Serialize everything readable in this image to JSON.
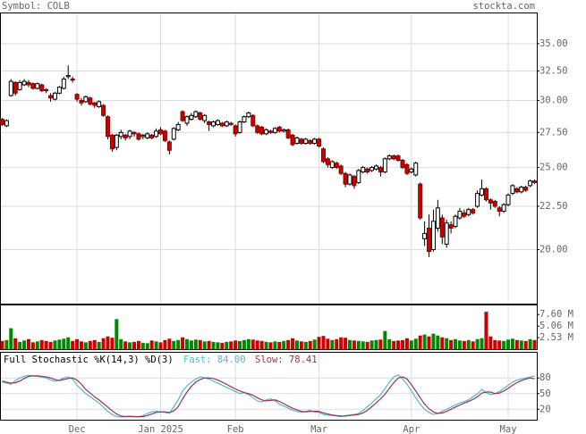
{
  "header": {
    "symbol": "Symbol: COLB",
    "site": "stockta.com"
  },
  "chart_data": [
    {
      "type": "candlestick",
      "categories": [
        null,
        null,
        null,
        null,
        null,
        null,
        null,
        null,
        null,
        null,
        null,
        null,
        null,
        null,
        null,
        null,
        null,
        "Dec",
        null,
        null,
        null,
        null,
        null,
        null,
        null,
        null,
        null,
        null,
        null,
        null,
        null,
        null,
        null,
        null,
        null,
        null,
        "Jan 2025",
        null,
        null,
        null,
        null,
        null,
        null,
        null,
        null,
        null,
        null,
        null,
        null,
        null,
        null,
        null,
        null,
        "Feb",
        null,
        null,
        null,
        null,
        null,
        null,
        null,
        null,
        null,
        null,
        null,
        null,
        null,
        null,
        null,
        null,
        null,
        null,
        "Mar",
        null,
        null,
        null,
        null,
        null,
        null,
        null,
        null,
        null,
        null,
        null,
        null,
        null,
        null,
        null,
        null,
        null,
        null,
        null,
        null,
        "Apr",
        null,
        null,
        null,
        null,
        null,
        null,
        null,
        null,
        null,
        null,
        null,
        null,
        null,
        null,
        null,
        null,
        null,
        null,
        null,
        null,
        null,
        "May",
        null,
        null,
        null,
        null,
        null,
        null
      ],
      "open": [
        28.5,
        28.0,
        30.4,
        31.5,
        30.9,
        31.3,
        31.5,
        31.4,
        31.0,
        31.3,
        30.9,
        30.4,
        30.1,
        30.6,
        31.0,
        32.0,
        31.8,
        30.5,
        30.0,
        29.9,
        30.2,
        29.8,
        29.5,
        29.6,
        28.7,
        27.3,
        26.4,
        27.2,
        27.3,
        27.2,
        27.5,
        27.4,
        27.2,
        27.1,
        27.3,
        27.2,
        27.7,
        27.6,
        26.8,
        27.0,
        27.7,
        29.1,
        28.2,
        28.5,
        28.7,
        29.0,
        28.4,
        28.3,
        28.0,
        28.1,
        28.2,
        28.0,
        28.2,
        28.0,
        27.5,
        28.3,
        28.7,
        28.8,
        28.0,
        27.9,
        27.4,
        27.6,
        27.5,
        27.9,
        27.6,
        27.7,
        27.3,
        26.7,
        27.0,
        26.7,
        26.9,
        26.7,
        27.0,
        26.3,
        25.6,
        25.0,
        25.3,
        25.1,
        24.6,
        23.9,
        24.4,
        24.0,
        24.7,
        24.9,
        24.8,
        24.9,
        25.0,
        24.7,
        25.6,
        25.8,
        25.8,
        25.5,
        25.2,
        24.7,
        24.5,
        23.9,
        20.6,
        21.2,
        20.0,
        21.2,
        21.8,
        20.3,
        21.4,
        21.3,
        21.8,
        22.1,
        22.0,
        22.3,
        22.5,
        23.2,
        23.6,
        22.9,
        22.8,
        22.4,
        22.2,
        22.6,
        23.3,
        23.6,
        23.4,
        23.7,
        23.8,
        24.1
      ],
      "high": [
        28.6,
        28.5,
        31.8,
        31.6,
        31.7,
        31.8,
        31.7,
        31.5,
        31.5,
        31.4,
        31.0,
        30.6,
        30.7,
        31.2,
        32.0,
        33.0,
        32.0,
        30.6,
        30.2,
        30.4,
        30.3,
        29.9,
        30.0,
        29.7,
        28.8,
        27.4,
        27.4,
        27.7,
        27.4,
        27.7,
        27.6,
        27.5,
        27.4,
        27.5,
        27.4,
        27.8,
        27.9,
        27.7,
        26.9,
        27.9,
        28.3,
        29.2,
        28.8,
        29.0,
        29.2,
        29.1,
        28.9,
        28.4,
        28.4,
        28.5,
        28.3,
        28.4,
        28.3,
        28.1,
        28.4,
        28.8,
        29.1,
        28.9,
        28.1,
        28.0,
        27.8,
        27.7,
        27.9,
        28.0,
        27.8,
        27.8,
        27.4,
        27.2,
        27.1,
        27.1,
        27.0,
        27.1,
        27.1,
        26.4,
        25.7,
        25.5,
        25.4,
        25.2,
        24.7,
        24.6,
        24.5,
        24.9,
        25.1,
        25.0,
        25.1,
        25.2,
        25.1,
        25.7,
        25.9,
        25.9,
        25.9,
        25.6,
        25.3,
        25.0,
        25.4,
        24.0,
        21.6,
        22.0,
        22.3,
        22.9,
        22.0,
        21.7,
        21.6,
        22.0,
        22.4,
        22.3,
        22.4,
        22.4,
        23.5,
        24.2,
        23.7,
        23.0,
        22.9,
        22.5,
        22.7,
        23.3,
        23.9,
        23.7,
        23.8,
        23.8,
        24.2,
        24.2
      ],
      "low": [
        28.0,
        27.9,
        30.3,
        30.4,
        30.8,
        31.2,
        31.1,
        30.9,
        30.9,
        30.7,
        30.6,
        29.9,
        30.0,
        30.5,
        30.9,
        31.8,
        31.5,
        29.9,
        29.6,
        29.8,
        29.6,
        29.4,
        29.4,
        28.7,
        27.0,
        26.1,
        26.2,
        27.0,
        26.9,
        27.0,
        27.2,
        26.9,
        27.0,
        27.0,
        27.0,
        27.1,
        27.3,
        26.8,
        25.9,
        26.9,
        27.6,
        28.3,
        28.0,
        28.4,
        28.6,
        28.4,
        28.2,
        27.6,
        27.9,
        28.0,
        27.9,
        27.9,
        28.0,
        27.2,
        27.4,
        28.2,
        28.6,
        27.9,
        27.4,
        27.3,
        27.3,
        27.4,
        27.4,
        27.5,
        27.5,
        27.0,
        26.5,
        26.6,
        26.6,
        26.6,
        26.6,
        26.6,
        26.4,
        25.3,
        25.0,
        24.9,
        24.9,
        24.5,
        23.7,
        23.8,
        23.6,
        23.9,
        24.6,
        24.6,
        24.7,
        24.8,
        24.4,
        24.6,
        25.5,
        25.5,
        25.4,
        24.9,
        24.5,
        24.6,
        24.4,
        21.7,
        20.2,
        19.6,
        19.9,
        21.0,
        20.3,
        20.1,
        20.9,
        21.2,
        21.7,
        21.8,
        21.9,
        22.0,
        22.4,
        23.1,
        22.8,
        22.3,
        22.4,
        21.9,
        22.1,
        22.5,
        23.2,
        23.3,
        23.3,
        23.4,
        23.7,
        23.9
      ],
      "close": [
        28.1,
        28.4,
        31.6,
        30.6,
        31.5,
        31.6,
        31.3,
        31.0,
        31.4,
        30.8,
        30.8,
        30.2,
        30.6,
        31.1,
        31.8,
        32.1,
        31.7,
        30.1,
        29.8,
        30.3,
        29.7,
        29.6,
        29.9,
        28.8,
        27.2,
        26.3,
        27.3,
        27.5,
        27.1,
        27.6,
        27.4,
        27.0,
        27.3,
        27.4,
        27.1,
        27.6,
        27.4,
        26.9,
        26.2,
        27.8,
        28.1,
        28.4,
        28.7,
        28.8,
        29.1,
        28.5,
        28.8,
        28.1,
        28.3,
        28.4,
        28.0,
        28.3,
        28.1,
        27.4,
        28.3,
        28.7,
        29.0,
        28.0,
        27.5,
        27.4,
        27.7,
        27.5,
        27.8,
        27.6,
        27.7,
        27.1,
        26.6,
        27.1,
        26.7,
        27.0,
        26.7,
        27.0,
        26.5,
        25.4,
        25.2,
        25.4,
        25.0,
        24.6,
        23.9,
        24.5,
        23.8,
        24.8,
        25.0,
        24.7,
        25.0,
        25.1,
        24.7,
        25.6,
        25.8,
        25.6,
        25.5,
        25.0,
        24.6,
        24.9,
        25.3,
        21.8,
        20.9,
        19.9,
        21.6,
        22.4,
        20.7,
        21.5,
        21.2,
        21.9,
        22.2,
        21.9,
        22.3,
        22.1,
        23.3,
        23.6,
        22.9,
        22.7,
        22.5,
        22.2,
        22.6,
        23.2,
        23.8,
        23.4,
        23.7,
        23.5,
        24.1,
        24.0
      ],
      "up_color": "#ffffff",
      "down_color": "#cc0000",
      "ylim": [
        17.27,
        38.1
      ],
      "log_scale": true,
      "grid": true,
      "yticks": [
        {
          "value": 20,
          "label": "20.00"
        },
        {
          "value": 22.5,
          "label": "22.50"
        },
        {
          "value": 25,
          "label": "25.00"
        },
        {
          "value": 27.5,
          "label": "27.50"
        },
        {
          "value": 30,
          "label": "30.00"
        },
        {
          "value": 32.5,
          "label": "32.50"
        },
        {
          "value": 35,
          "label": "35.00"
        }
      ]
    },
    {
      "type": "bar",
      "values": [
        1.8,
        2.0,
        4.6,
        2.4,
        1.6,
        1.9,
        2.2,
        1.5,
        1.7,
        2.0,
        1.8,
        1.6,
        1.9,
        2.1,
        2.3,
        2.6,
        1.8,
        2.2,
        1.7,
        1.5,
        1.8,
        2.0,
        1.6,
        2.4,
        2.8,
        2.5,
        6.6,
        2.2,
        1.7,
        1.5,
        1.6,
        1.8,
        1.4,
        1.3,
        1.9,
        1.7,
        1.5,
        2.0,
        2.3,
        1.8,
        2.0,
        2.6,
        2.2,
        1.9,
        2.1,
        2.0,
        1.7,
        1.8,
        1.6,
        1.5,
        1.4,
        1.6,
        1.7,
        1.9,
        1.8,
        2.0,
        2.2,
        2.1,
        1.9,
        1.8,
        1.6,
        1.5,
        1.7,
        1.6,
        1.8,
        2.0,
        2.4,
        1.9,
        1.7,
        1.6,
        1.8,
        2.1,
        2.7,
        2.9,
        2.3,
        2.0,
        2.2,
        2.6,
        2.5,
        2.0,
        1.9,
        1.8,
        1.7,
        1.6,
        1.9,
        2.0,
        2.1,
        4.0,
        2.2,
        1.8,
        1.9,
        2.0,
        2.4,
        1.9,
        2.3,
        3.0,
        3.2,
        2.8,
        3.4,
        3.0,
        2.6,
        2.4,
        2.0,
        2.2,
        1.9,
        1.8,
        2.0,
        1.7,
        2.2,
        2.4,
        8.2,
        2.8,
        2.0,
        1.9,
        1.8,
        2.1,
        2.3,
        2.0,
        1.9,
        1.8,
        2.2,
        2.0
      ],
      "up_color": "#008800",
      "down_color": "#cc0000",
      "ylim": [
        0,
        9.8
      ],
      "yticks": [
        {
          "value": 2.53,
          "label": "2.53 M"
        },
        {
          "value": 5.06,
          "label": "5.06 M"
        },
        {
          "value": 7.6,
          "label": "7.60 M"
        }
      ]
    },
    {
      "type": "line",
      "title": "Full Stochastic %K(14,3) %D(3)",
      "series": [
        {
          "name": "Fast: 84.00",
          "color": "#55b8cc",
          "values": [
            72,
            70,
            68,
            75,
            80,
            83,
            85,
            84,
            83,
            82,
            80,
            76,
            74,
            76,
            80,
            82,
            78,
            66,
            58,
            50,
            44,
            38,
            32,
            24,
            16,
            10,
            6,
            5,
            6,
            7,
            6,
            5,
            8,
            12,
            15,
            16,
            15,
            14,
            12,
            25,
            38,
            55,
            65,
            72,
            78,
            82,
            80,
            78,
            74,
            70,
            66,
            62,
            58,
            54,
            50,
            52,
            48,
            42,
            36,
            34,
            38,
            40,
            36,
            30,
            26,
            22,
            18,
            16,
            14,
            16,
            18,
            15,
            14,
            10,
            9,
            8,
            7,
            6,
            8,
            9,
            10,
            12,
            18,
            25,
            32,
            40,
            48,
            60,
            72,
            82,
            86,
            78,
            68,
            55,
            42,
            30,
            20,
            14,
            10,
            12,
            16,
            20,
            24,
            28,
            32,
            35,
            38,
            44,
            50,
            58,
            52,
            48,
            50,
            54,
            60,
            66,
            72,
            76,
            78,
            80,
            82,
            84
          ]
        },
        {
          "name": "Slow: 78.41",
          "color": "#993355",
          "values": [
            74,
            72,
            70,
            71,
            74,
            79,
            83,
            84,
            84,
            83,
            82,
            80,
            77,
            75,
            77,
            79,
            80,
            76,
            68,
            58,
            51,
            44,
            38,
            31,
            24,
            17,
            11,
            7,
            6,
            6,
            6,
            6,
            6,
            8,
            11,
            14,
            15,
            15,
            14,
            17,
            25,
            40,
            53,
            64,
            72,
            77,
            80,
            80,
            79,
            76,
            72,
            68,
            63,
            59,
            55,
            52,
            50,
            47,
            42,
            38,
            36,
            37,
            38,
            35,
            31,
            26,
            22,
            19,
            16,
            15,
            16,
            16,
            16,
            13,
            11,
            9,
            8,
            7,
            7,
            8,
            9,
            10,
            13,
            18,
            25,
            32,
            40,
            49,
            60,
            71,
            80,
            82,
            78,
            67,
            55,
            42,
            30,
            21,
            15,
            12,
            13,
            16,
            20,
            24,
            28,
            32,
            35,
            39,
            44,
            51,
            53,
            53,
            50,
            51,
            55,
            60,
            66,
            71,
            75,
            78,
            80,
            78.41
          ]
        }
      ],
      "ylim": [
        0,
        130
      ],
      "yticks": [
        20,
        50,
        80
      ]
    }
  ]
}
